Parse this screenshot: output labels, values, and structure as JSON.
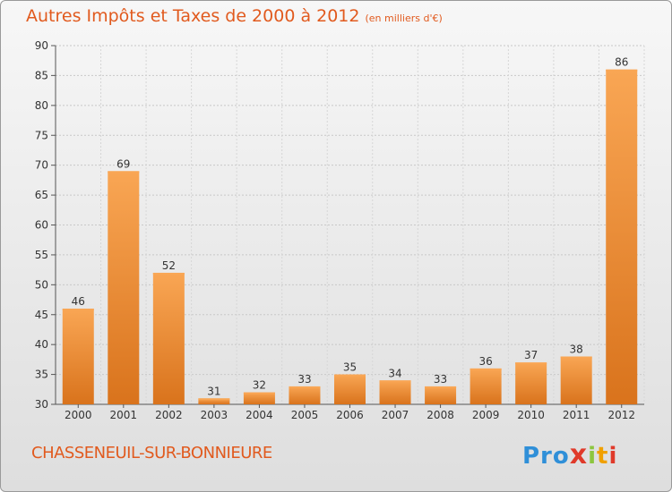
{
  "header": {
    "title": "Autres Impôts et Taxes de 2000 à 2012",
    "subtitle": "(en milliers d'€)"
  },
  "footer": {
    "town": "CHASSENEUIL-SUR-BONNIEURE",
    "logo": {
      "p1": "Pro",
      "x": "x",
      "i1": "i",
      "t": "t",
      "i2": "i"
    }
  },
  "colors": {
    "bar_top": "#f9a654",
    "bar_bottom": "#d9731c",
    "title": "#e15a1e"
  },
  "chart_data": {
    "type": "bar",
    "title": "Autres Impôts et Taxes de 2000 à 2012",
    "subtitle": "(en milliers d'€)",
    "categories": [
      "2000",
      "2001",
      "2002",
      "2003",
      "2004",
      "2005",
      "2006",
      "2007",
      "2008",
      "2009",
      "2010",
      "2011",
      "2012"
    ],
    "values": [
      46,
      69,
      52,
      31,
      32,
      33,
      35,
      34,
      33,
      36,
      37,
      38,
      86
    ],
    "xlabel": "",
    "ylabel": "",
    "ylim": [
      30,
      90
    ],
    "yticks": [
      30,
      35,
      40,
      45,
      50,
      55,
      60,
      65,
      70,
      75,
      80,
      85,
      90
    ],
    "grid": true
  }
}
